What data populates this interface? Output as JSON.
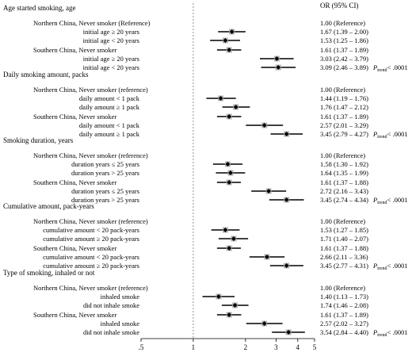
{
  "chart_data": {
    "type": "forest",
    "title": "",
    "xlabel": "",
    "ylabel": "",
    "x_scale": "log",
    "xlim": [
      0.5,
      5
    ],
    "reference_line": 1,
    "x_ticks": [
      {
        "value": 0.5,
        "label": ".5"
      },
      {
        "value": 1,
        "label": "1"
      },
      {
        "value": 2,
        "label": "2"
      },
      {
        "value": 3,
        "label": "3"
      },
      {
        "value": 4,
        "label": "4"
      },
      {
        "value": 5,
        "label": "5"
      }
    ],
    "column_header": "OR (95% CI)",
    "sections": [
      {
        "title": "Age started smoking, age",
        "ptrend_prefix": "P",
        "ptrend_sub": "trend",
        "ptrend_value": "< .0001",
        "rows": [
          {
            "label": "Northern China, Never smoker (Reference)",
            "indent": 1,
            "or_text": "1.00 (Reference)"
          },
          {
            "label": "initial age ≥ 20 years",
            "indent": 2,
            "or": 1.67,
            "lo": 1.39,
            "hi": 2.0,
            "or_text": "1.67 (1.39 – 2.00)"
          },
          {
            "label": "initial age < 20 years",
            "indent": 2,
            "or": 1.53,
            "lo": 1.25,
            "hi": 1.86,
            "or_text": "1.53 (1.25 – 1.86)"
          },
          {
            "label": "Southern China, Never smoker",
            "indent": 1,
            "or": 1.61,
            "lo": 1.37,
            "hi": 1.89,
            "or_text": "1.61 (1.37 – 1.89)"
          },
          {
            "label": "initial age ≥ 20 years",
            "indent": 2,
            "or": 3.03,
            "lo": 2.42,
            "hi": 3.79,
            "or_text": "3.03 (2.42 – 3.79)"
          },
          {
            "label": "initial age < 20 years",
            "indent": 2,
            "or": 3.09,
            "lo": 2.46,
            "hi": 3.89,
            "or_text": "3.09 (2.46 – 3.89)",
            "ptrend": true
          }
        ]
      },
      {
        "title": "Daily smoking amount, packs",
        "ptrend_prefix": "P",
        "ptrend_sub": "trend",
        "ptrend_value": "< .0001",
        "rows": [
          {
            "label": "Northern China, Never smoker (reference)",
            "indent": 1,
            "or_text": "1.00 (Reference)"
          },
          {
            "label": "daily amount < 1 pack",
            "indent": 2,
            "or": 1.44,
            "lo": 1.19,
            "hi": 1.76,
            "or_text": "1.44 (1.19 – 1.76)"
          },
          {
            "label": "daily amount ≥ 1 pack",
            "indent": 2,
            "or": 1.76,
            "lo": 1.47,
            "hi": 2.12,
            "or_text": "1.76 (1.47 – 2.12)"
          },
          {
            "label": "Southern China, Never smoker",
            "indent": 1,
            "or": 1.61,
            "lo": 1.37,
            "hi": 1.89,
            "or_text": "1.61 (1.37 – 1.89)"
          },
          {
            "label": "daily amount < 1 pack",
            "indent": 2,
            "or": 2.57,
            "lo": 2.01,
            "hi": 3.29,
            "or_text": "2.57 (2.01 – 3.29)"
          },
          {
            "label": "daily amount ≥ 1 pack",
            "indent": 2,
            "or": 3.45,
            "lo": 2.79,
            "hi": 4.27,
            "or_text": "3.45 (2.79 – 4.27)",
            "ptrend": true
          }
        ]
      },
      {
        "title": "Smoking duration, years",
        "ptrend_prefix": "P",
        "ptrend_sub": "trend",
        "ptrend_value": "< .0001",
        "rows": [
          {
            "label": "Northern China, Never smoker (reference)",
            "indent": 1,
            "or_text": "1.00 (Reference)"
          },
          {
            "label": "duration years ≤ 25 years",
            "indent": 2,
            "or": 1.58,
            "lo": 1.3,
            "hi": 1.92,
            "or_text": "1.58 (1.30 – 1.92)"
          },
          {
            "label": "duration years > 25 years",
            "indent": 2,
            "or": 1.64,
            "lo": 1.35,
            "hi": 1.99,
            "or_text": "1.64 (1.35 – 1.99)"
          },
          {
            "label": "Southern China, Never smoker",
            "indent": 1,
            "or": 1.61,
            "lo": 1.37,
            "hi": 1.88,
            "or_text": "1.61 (1.37 – 1.88)"
          },
          {
            "label": "duration years ≤ 25 years",
            "indent": 2,
            "or": 2.72,
            "lo": 2.16,
            "hi": 3.43,
            "or_text": "2.72 (2.16 – 3.43)"
          },
          {
            "label": "duration years > 25 years",
            "indent": 2,
            "or": 3.45,
            "lo": 2.74,
            "hi": 4.34,
            "or_text": "3.45 (2.74 – 4.34)",
            "ptrend": true
          }
        ]
      },
      {
        "title": "Cumulative amount, pack-years",
        "ptrend_prefix": "P",
        "ptrend_sub": "trend",
        "ptrend_value": "< .0001",
        "rows": [
          {
            "label": "Northern China, Never smoker (reference)",
            "indent": 1,
            "or_text": "1.00 (Reference)"
          },
          {
            "label": "cumulative amount < 20 pack-years",
            "indent": 2,
            "or": 1.53,
            "lo": 1.27,
            "hi": 1.85,
            "or_text": "1.53 (1.27 – 1.85)"
          },
          {
            "label": "cumulative amount ≥ 20 pack-years",
            "indent": 2,
            "or": 1.71,
            "lo": 1.4,
            "hi": 2.07,
            "or_text": "1.71 (1.40 – 2.07)"
          },
          {
            "label": "Southern China, Never smoker",
            "indent": 1,
            "or": 1.61,
            "lo": 1.37,
            "hi": 1.88,
            "or_text": "1.61 (1.37 – 1.88)"
          },
          {
            "label": "cumulative amount < 20 pack-years",
            "indent": 2,
            "or": 2.66,
            "lo": 2.11,
            "hi": 3.36,
            "or_text": "2.66 (2.11 – 3.36)"
          },
          {
            "label": "cumulative amount ≥ 20 pack-years",
            "indent": 2,
            "or": 3.45,
            "lo": 2.77,
            "hi": 4.31,
            "or_text": "3.45 (2.77 – 4.31)",
            "ptrend": true
          }
        ]
      },
      {
        "title": "Type of smoking, inhaled or not",
        "ptrend_prefix": "P",
        "ptrend_sub": "trend",
        "ptrend_value": "< .0001",
        "rows": [
          {
            "label": "Northern China, Never smoker (reference)",
            "indent": 1,
            "or_text": "1.00 (Reference)"
          },
          {
            "label": "inhaled smoke",
            "indent": 2,
            "or": 1.4,
            "lo": 1.13,
            "hi": 1.73,
            "or_text": "1.40 (1.13 – 1.73)"
          },
          {
            "label": "did not inhale smoke",
            "indent": 2,
            "or": 1.74,
            "lo": 1.46,
            "hi": 2.08,
            "or_text": "1.74 (1.46 – 2.08)"
          },
          {
            "label": "Southern China, Never smoker",
            "indent": 1,
            "or": 1.61,
            "lo": 1.37,
            "hi": 1.89,
            "or_text": "1.61 (1.37 – 1.89)"
          },
          {
            "label": "inhaled smoke",
            "indent": 2,
            "or": 2.57,
            "lo": 2.02,
            "hi": 3.27,
            "or_text": "2.57 (2.02 – 3.27)"
          },
          {
            "label": "did not inhale smoke",
            "indent": 2,
            "or": 3.54,
            "lo": 2.84,
            "hi": 4.4,
            "or_text": "3.54 (2.84 – 4.40)",
            "ptrend": true
          }
        ]
      }
    ]
  }
}
